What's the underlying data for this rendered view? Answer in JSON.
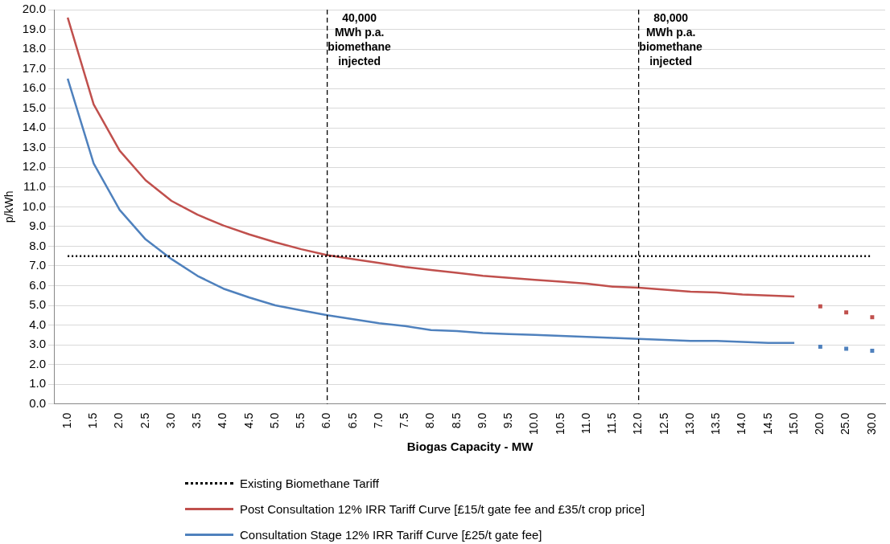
{
  "chart_data": {
    "type": "line",
    "xlabel": "Biogas Capacity - MW",
    "ylabel": "p/kWh",
    "categories": [
      "1.0",
      "1.5",
      "2.0",
      "2.5",
      "3.0",
      "3.5",
      "4.0",
      "4.5",
      "5.0",
      "5.5",
      "6.0",
      "6.5",
      "7.0",
      "7.5",
      "8.0",
      "8.5",
      "9.0",
      "9.5",
      "10.0",
      "10.5",
      "11.0",
      "11.5",
      "12.0",
      "12.5",
      "13.0",
      "13.5",
      "14.0",
      "14.5",
      "15.0",
      "20.0",
      "25.0",
      "30.0"
    ],
    "series": [
      {
        "name": "Existing Biomethane Tariff",
        "color": "#000000",
        "line_style": "dotted",
        "marker": "none",
        "values": [
          7.5,
          7.5,
          7.5,
          7.5,
          7.5,
          7.5,
          7.5,
          7.5,
          7.5,
          7.5,
          7.5,
          7.5,
          7.5,
          7.5,
          7.5,
          7.5,
          7.5,
          7.5,
          7.5,
          7.5,
          7.5,
          7.5,
          7.5,
          7.5,
          7.5,
          7.5,
          7.5,
          7.5,
          7.5,
          7.5,
          7.5,
          7.5
        ]
      },
      {
        "name": "Post Consultation 12% IRR Tariff Curve [£15/t gate fee and £35/t crop price]",
        "color": "#c0504d",
        "line_style": "solid",
        "marker": "none",
        "values": [
          19.6,
          15.2,
          12.85,
          11.35,
          10.3,
          9.6,
          9.05,
          8.6,
          8.2,
          7.85,
          7.55,
          7.35,
          7.15,
          6.95,
          6.8,
          6.65,
          6.5,
          6.4,
          6.3,
          6.2,
          6.1,
          5.95,
          5.9,
          5.8,
          5.7,
          5.65,
          5.55,
          5.5,
          5.45,
          null,
          null,
          null
        ]
      },
      {
        "name": "Consultation Stage 12% IRR Tariff Curve [£25/t gate fee]",
        "color": "#4f81bd",
        "line_style": "solid",
        "marker": "none",
        "values": [
          16.5,
          12.2,
          9.85,
          8.35,
          7.35,
          6.5,
          5.85,
          5.4,
          5.0,
          4.75,
          4.5,
          4.3,
          4.1,
          3.95,
          3.75,
          3.7,
          3.6,
          3.55,
          3.5,
          3.45,
          3.4,
          3.35,
          3.3,
          3.25,
          3.2,
          3.2,
          3.15,
          3.1,
          3.1,
          null,
          null,
          null
        ]
      },
      {
        "type": "scatter",
        "color": "#c0504d",
        "marker": "square",
        "x": [
          "20.0",
          "25.0",
          "30.0"
        ],
        "values": [
          4.95,
          4.65,
          4.4
        ]
      },
      {
        "type": "scatter",
        "color": "#4f81bd",
        "marker": "square",
        "x": [
          "20.0",
          "25.0",
          "30.0"
        ],
        "values": [
          2.9,
          2.8,
          2.7
        ]
      }
    ],
    "ylim": [
      0,
      20
    ],
    "yticks": [
      {
        "value": 0,
        "label": "0.0"
      },
      {
        "value": 1,
        "label": "1.0"
      },
      {
        "value": 2,
        "label": "2.0"
      },
      {
        "value": 3,
        "label": "3.0"
      },
      {
        "value": 4,
        "label": "4.0"
      },
      {
        "value": 5,
        "label": "5.0"
      },
      {
        "value": 6,
        "label": "6.0"
      },
      {
        "value": 7,
        "label": "7.0"
      },
      {
        "value": 8,
        "label": "8.0"
      },
      {
        "value": 9,
        "label": "9.0"
      },
      {
        "value": 10,
        "label": "10.0"
      },
      {
        "value": 11,
        "label": "11.0"
      },
      {
        "value": 12,
        "label": "12.0"
      },
      {
        "value": 13,
        "label": "13.0"
      },
      {
        "value": 14,
        "label": "14.0"
      },
      {
        "value": 15,
        "label": "15.0"
      },
      {
        "value": 16,
        "label": "16.0"
      },
      {
        "value": 17,
        "label": "17.0"
      },
      {
        "value": 18,
        "label": "18.0"
      },
      {
        "value": 19,
        "label": "19.0"
      },
      {
        "value": 20,
        "label": "20.0"
      }
    ],
    "ref_lines": [
      {
        "axis": "x",
        "value": "6.0",
        "label": "40,000\nMWh p.a.\nbiomethane\ninjected",
        "color": "#000000",
        "line_style": "dashed"
      },
      {
        "axis": "x",
        "value": "12.0",
        "label": "80,000\nMWh p.a.\nbiomethane\ninjected",
        "color": "#000000",
        "line_style": "dashed"
      }
    ],
    "grid": "y",
    "legend": "bottom"
  }
}
